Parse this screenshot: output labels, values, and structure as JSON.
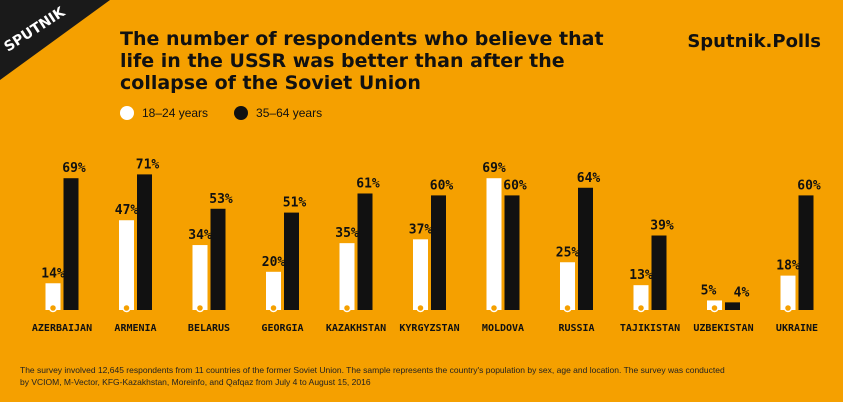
{
  "header": {
    "logo_text": "SPUTNIK",
    "title": "The number of respondents who believe that life in the USSR was better than after the collapse of the Soviet Union",
    "brand": "Sputnik.Polls"
  },
  "legend": {
    "series1": "18–24 years",
    "series2": "35–64 years"
  },
  "colors": {
    "background": "#f5a000",
    "series1": "#ffffff",
    "series2": "#111111",
    "logo_bg": "#1a1a1a"
  },
  "chart_data": {
    "type": "bar",
    "title": "The number of respondents who believe that life in the USSR was better than after the collapse of the Soviet Union",
    "xlabel": "",
    "ylabel": "",
    "ylim": [
      0,
      75
    ],
    "categories": [
      "AZERBAIJAN",
      "ARMENIA",
      "BELARUS",
      "GEORGIA",
      "KAZAKHSTAN",
      "KYRGYZSTAN",
      "MOLDOVA",
      "RUSSIA",
      "TAJIKISTAN",
      "UZBEKISTAN",
      "UKRAINE"
    ],
    "series": [
      {
        "name": "18–24 years",
        "values": [
          14,
          47,
          34,
          20,
          35,
          37,
          69,
          25,
          13,
          5,
          18
        ]
      },
      {
        "name": "35–64 years",
        "values": [
          69,
          71,
          53,
          51,
          61,
          60,
          60,
          64,
          39,
          4,
          60
        ]
      }
    ],
    "legend_position": "top-left",
    "grid": false
  },
  "footnote": {
    "line1": "The survey involved 12,645 respondents from 11 countries of the former Soviet Union. The sample represents the country's population by sex, age and location. The survey was conducted",
    "line2": "by VCIOM, M-Vector,  KFG-Kazakhstan, Moreinfo,  and Qafqaz from July 4 to August 15, 2016"
  }
}
